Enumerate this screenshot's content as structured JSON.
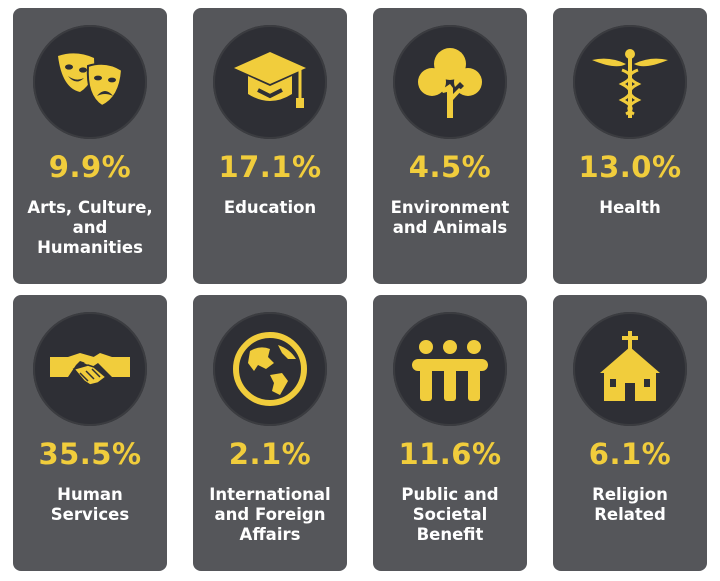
{
  "colors": {
    "card": "#55565a",
    "circle": "#2e2f35",
    "accent": "#f1cd3c",
    "text": "#ffffff"
  },
  "categories": [
    {
      "percent": "9.9%",
      "label_lines": [
        "Arts, Culture,",
        "and",
        "Humanities"
      ],
      "icon": "theater-masks-icon"
    },
    {
      "percent": "17.1%",
      "label_lines": [
        "Education"
      ],
      "icon": "graduation-cap-icon"
    },
    {
      "percent": "4.5%",
      "label_lines": [
        "Environment",
        "and Animals"
      ],
      "icon": "tree-icon"
    },
    {
      "percent": "13.0%",
      "label_lines": [
        "Health"
      ],
      "icon": "caduceus-icon"
    },
    {
      "percent": "35.5%",
      "label_lines": [
        "Human",
        "Services"
      ],
      "icon": "handshake-icon"
    },
    {
      "percent": "2.1%",
      "label_lines": [
        "International",
        "and Foreign",
        "Affairs"
      ],
      "icon": "globe-icon"
    },
    {
      "percent": "11.6%",
      "label_lines": [
        "Public and",
        "Societal",
        "Benefit"
      ],
      "icon": "people-holding-hands-icon"
    },
    {
      "percent": "6.1%",
      "label_lines": [
        "Religion",
        "Related"
      ],
      "icon": "church-icon"
    }
  ]
}
